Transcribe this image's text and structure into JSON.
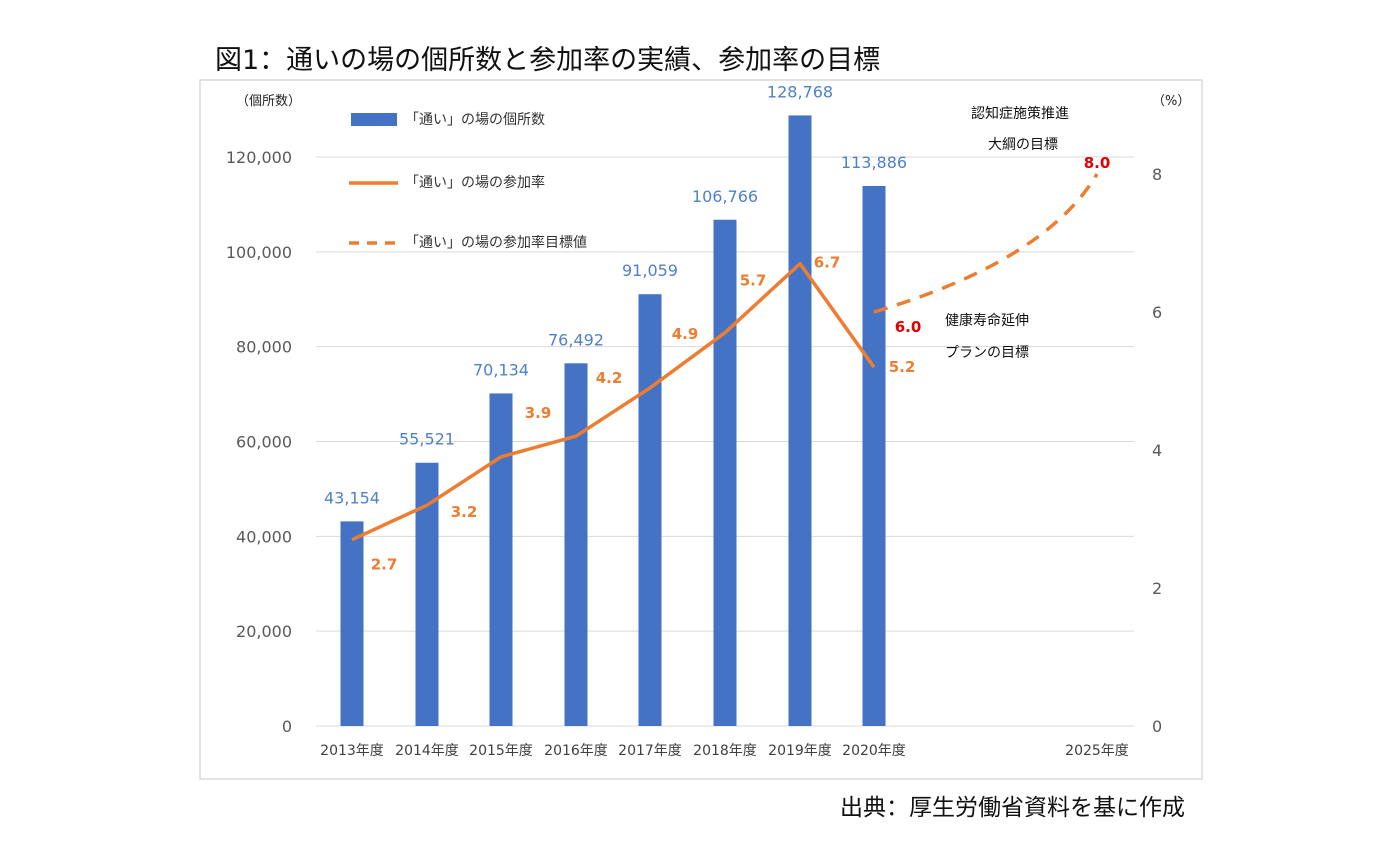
{
  "header": {
    "title": "図1：通いの場の個所数と参加率の実績、参加率の目標"
  },
  "footer": {
    "source": "出典：厚生労働省資料を基に作成"
  },
  "chart_data": {
    "type": "bar",
    "title": "図1：通いの場の個所数と参加率の実績、参加率の目標",
    "left_axis_unit": "（個所数）",
    "right_axis_unit": "（%）",
    "ylim": [
      0,
      130000
    ],
    "y_ticks": [
      "0",
      "20,000",
      "40,000",
      "60,000",
      "80,000",
      "100,000",
      "120,000"
    ],
    "y2lim": [
      0,
      9.5
    ],
    "y2_ticks": [
      "0",
      "2",
      "4",
      "6",
      "8"
    ],
    "grid": true,
    "categories": [
      "2013年度",
      "2014年度",
      "2015年度",
      "2016年度",
      "2017年度",
      "2018年度",
      "2019年度",
      "2020年度",
      "2025年度"
    ],
    "series": [
      {
        "name": "「通い」の場の個所数",
        "type": "bar",
        "axis": "left",
        "color": "#4472c4",
        "values": [
          43154,
          55521,
          70134,
          76492,
          91059,
          106766,
          128768,
          113886,
          null
        ],
        "labels": [
          "43,154",
          "55,521",
          "70,134",
          "76,492",
          "91,059",
          "106,766",
          "128,768",
          "113,886",
          ""
        ]
      },
      {
        "name": "「通い」の場の参加率",
        "type": "line",
        "axis": "right",
        "color": "#ed7d31",
        "values": [
          2.7,
          3.2,
          3.9,
          4.2,
          4.9,
          5.7,
          6.7,
          5.2,
          null
        ],
        "labels": [
          "2.7",
          "3.2",
          "3.9",
          "4.2",
          "4.9",
          "5.7",
          "6.7",
          "5.2",
          ""
        ]
      },
      {
        "name": "「通い」の場の参加率目標値",
        "type": "line-dashed",
        "axis": "right",
        "color": "#ed7d31",
        "x": [
          "2020年度",
          "2025年度"
        ],
        "values": [
          6.0,
          8.0
        ],
        "labels": [
          "6.0",
          "8.0"
        ],
        "label_color": "#e00000"
      }
    ],
    "legend_placement": "top-left",
    "annotations": {
      "target_2025_line1": "認知症施策推進",
      "target_2025_line2": "大綱の目標",
      "target_2020_line1": "健康寿命延伸",
      "target_2020_line2": "プランの目標"
    }
  }
}
